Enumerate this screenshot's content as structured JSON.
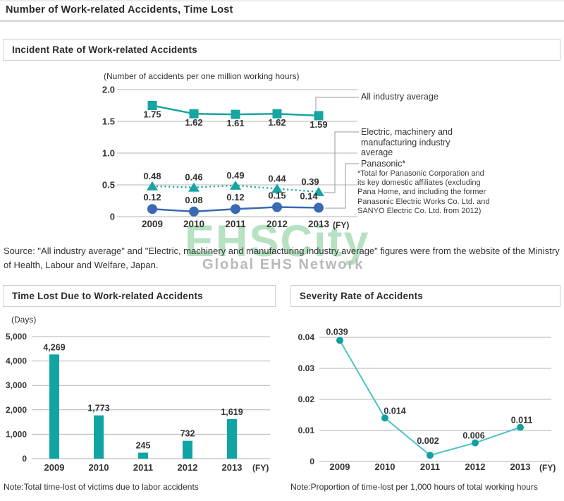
{
  "page": {
    "title": "Number of Work-related Accidents, Time Lost"
  },
  "sections": {
    "incident": {
      "title": "Incident Rate of Work-related Accidents"
    },
    "time_lost": {
      "title": "Time Lost Due to Work-related Accidents"
    },
    "severity": {
      "title": "Severity Rate of Accidents"
    }
  },
  "source_text": "Source: \"All industry average\" and \"Electric, machinery and manufacturing industry average\" figures were from the website of the Ministry of Health, Labour and Welfare, Japan.",
  "watermark": {
    "main": "EHSCity",
    "sub": "Global EHS Network"
  },
  "notes": {
    "time_lost": "Note:Total time-lost of victims due to labor accidents",
    "severity": "Note:Proportion of time-lost per 1,000 hours of total working hours"
  },
  "chart_data": [
    {
      "id": "incident_rate",
      "type": "line",
      "title": "Incident Rate of Work-related Accidents",
      "unit_label": "(Number of accidents per one million working hours)",
      "x_axis_label": "(FY)",
      "categories": [
        "2009",
        "2010",
        "2011",
        "2012",
        "2013"
      ],
      "ylim": [
        0,
        2.0
      ],
      "yticks": [
        "2.0",
        "1.5",
        "1.0",
        "0.5",
        "0"
      ],
      "ytick_values": [
        2.0,
        1.5,
        1.0,
        0.5,
        0
      ],
      "grid": true,
      "legend_position": "right",
      "series": [
        {
          "name": "All industry average",
          "values": [
            1.75,
            1.62,
            1.61,
            1.62,
            1.59
          ],
          "labels": [
            "1.75",
            "1.62",
            "1.61",
            "1.62",
            "1.59"
          ],
          "color": "#17a5a1",
          "marker": "square",
          "line": "solid"
        },
        {
          "name": "Electric, machinery and manufacturing industry average",
          "values": [
            0.48,
            0.46,
            0.49,
            0.44,
            0.39
          ],
          "labels": [
            "0.48",
            "0.46",
            "0.49",
            "0.44",
            "0.39"
          ],
          "color": "#17a5a1",
          "marker": "triangle",
          "line": "dotted"
        },
        {
          "name": "Panasonic*",
          "values": [
            0.12,
            0.08,
            0.12,
            0.15,
            0.14
          ],
          "labels": [
            "0.12",
            "0.08",
            "0.12",
            "0.15",
            "0.14"
          ],
          "color": "#3b69b3",
          "marker": "circle",
          "line": "solid"
        }
      ],
      "legend": {
        "all_industry": "All industry average",
        "electric": "Electric, machinery and manufacturing industry average",
        "panasonic": "Panasonic*",
        "footnote": "*Total for Panasonic Corporation and its key domestic affiliates (excluding Pana Home, and including the former Panasonic Electric Works Co. Ltd. and SANYO Electric Co. Ltd. from 2012)"
      }
    },
    {
      "id": "time_lost",
      "type": "bar",
      "title": "Time Lost Due to Work-related Accidents",
      "unit_label": "(Days)",
      "x_axis_label": "(FY)",
      "categories": [
        "2009",
        "2010",
        "2011",
        "2012",
        "2013"
      ],
      "values": [
        4269,
        1773,
        245,
        732,
        1619
      ],
      "value_labels": [
        "4,269",
        "1,773",
        "245",
        "732",
        "1,619"
      ],
      "ylim": [
        0,
        5000
      ],
      "yticks": [
        "5,000",
        "4,000",
        "3,000",
        "2,000",
        "1,000",
        "0"
      ],
      "ytick_values": [
        5000,
        4000,
        3000,
        2000,
        1000,
        0
      ],
      "grid": true,
      "bar_color": "#10a5a4"
    },
    {
      "id": "severity_rate",
      "type": "line",
      "title": "Severity Rate of Accidents",
      "x_axis_label": "(FY)",
      "categories": [
        "2009",
        "2010",
        "2011",
        "2012",
        "2013"
      ],
      "values": [
        0.039,
        0.014,
        0.002,
        0.006,
        0.011
      ],
      "value_labels": [
        "0.039",
        "0.014",
        "0.002",
        "0.006",
        "0.011"
      ],
      "ylim": [
        0,
        0.04
      ],
      "yticks": [
        "0.04",
        "0.03",
        "0.02",
        "0.01",
        "0"
      ],
      "ytick_values": [
        0.04,
        0.03,
        0.02,
        0.01,
        0
      ],
      "grid": true,
      "line_color": "#4cc3c1",
      "marker_color": "#12a09e"
    }
  ]
}
